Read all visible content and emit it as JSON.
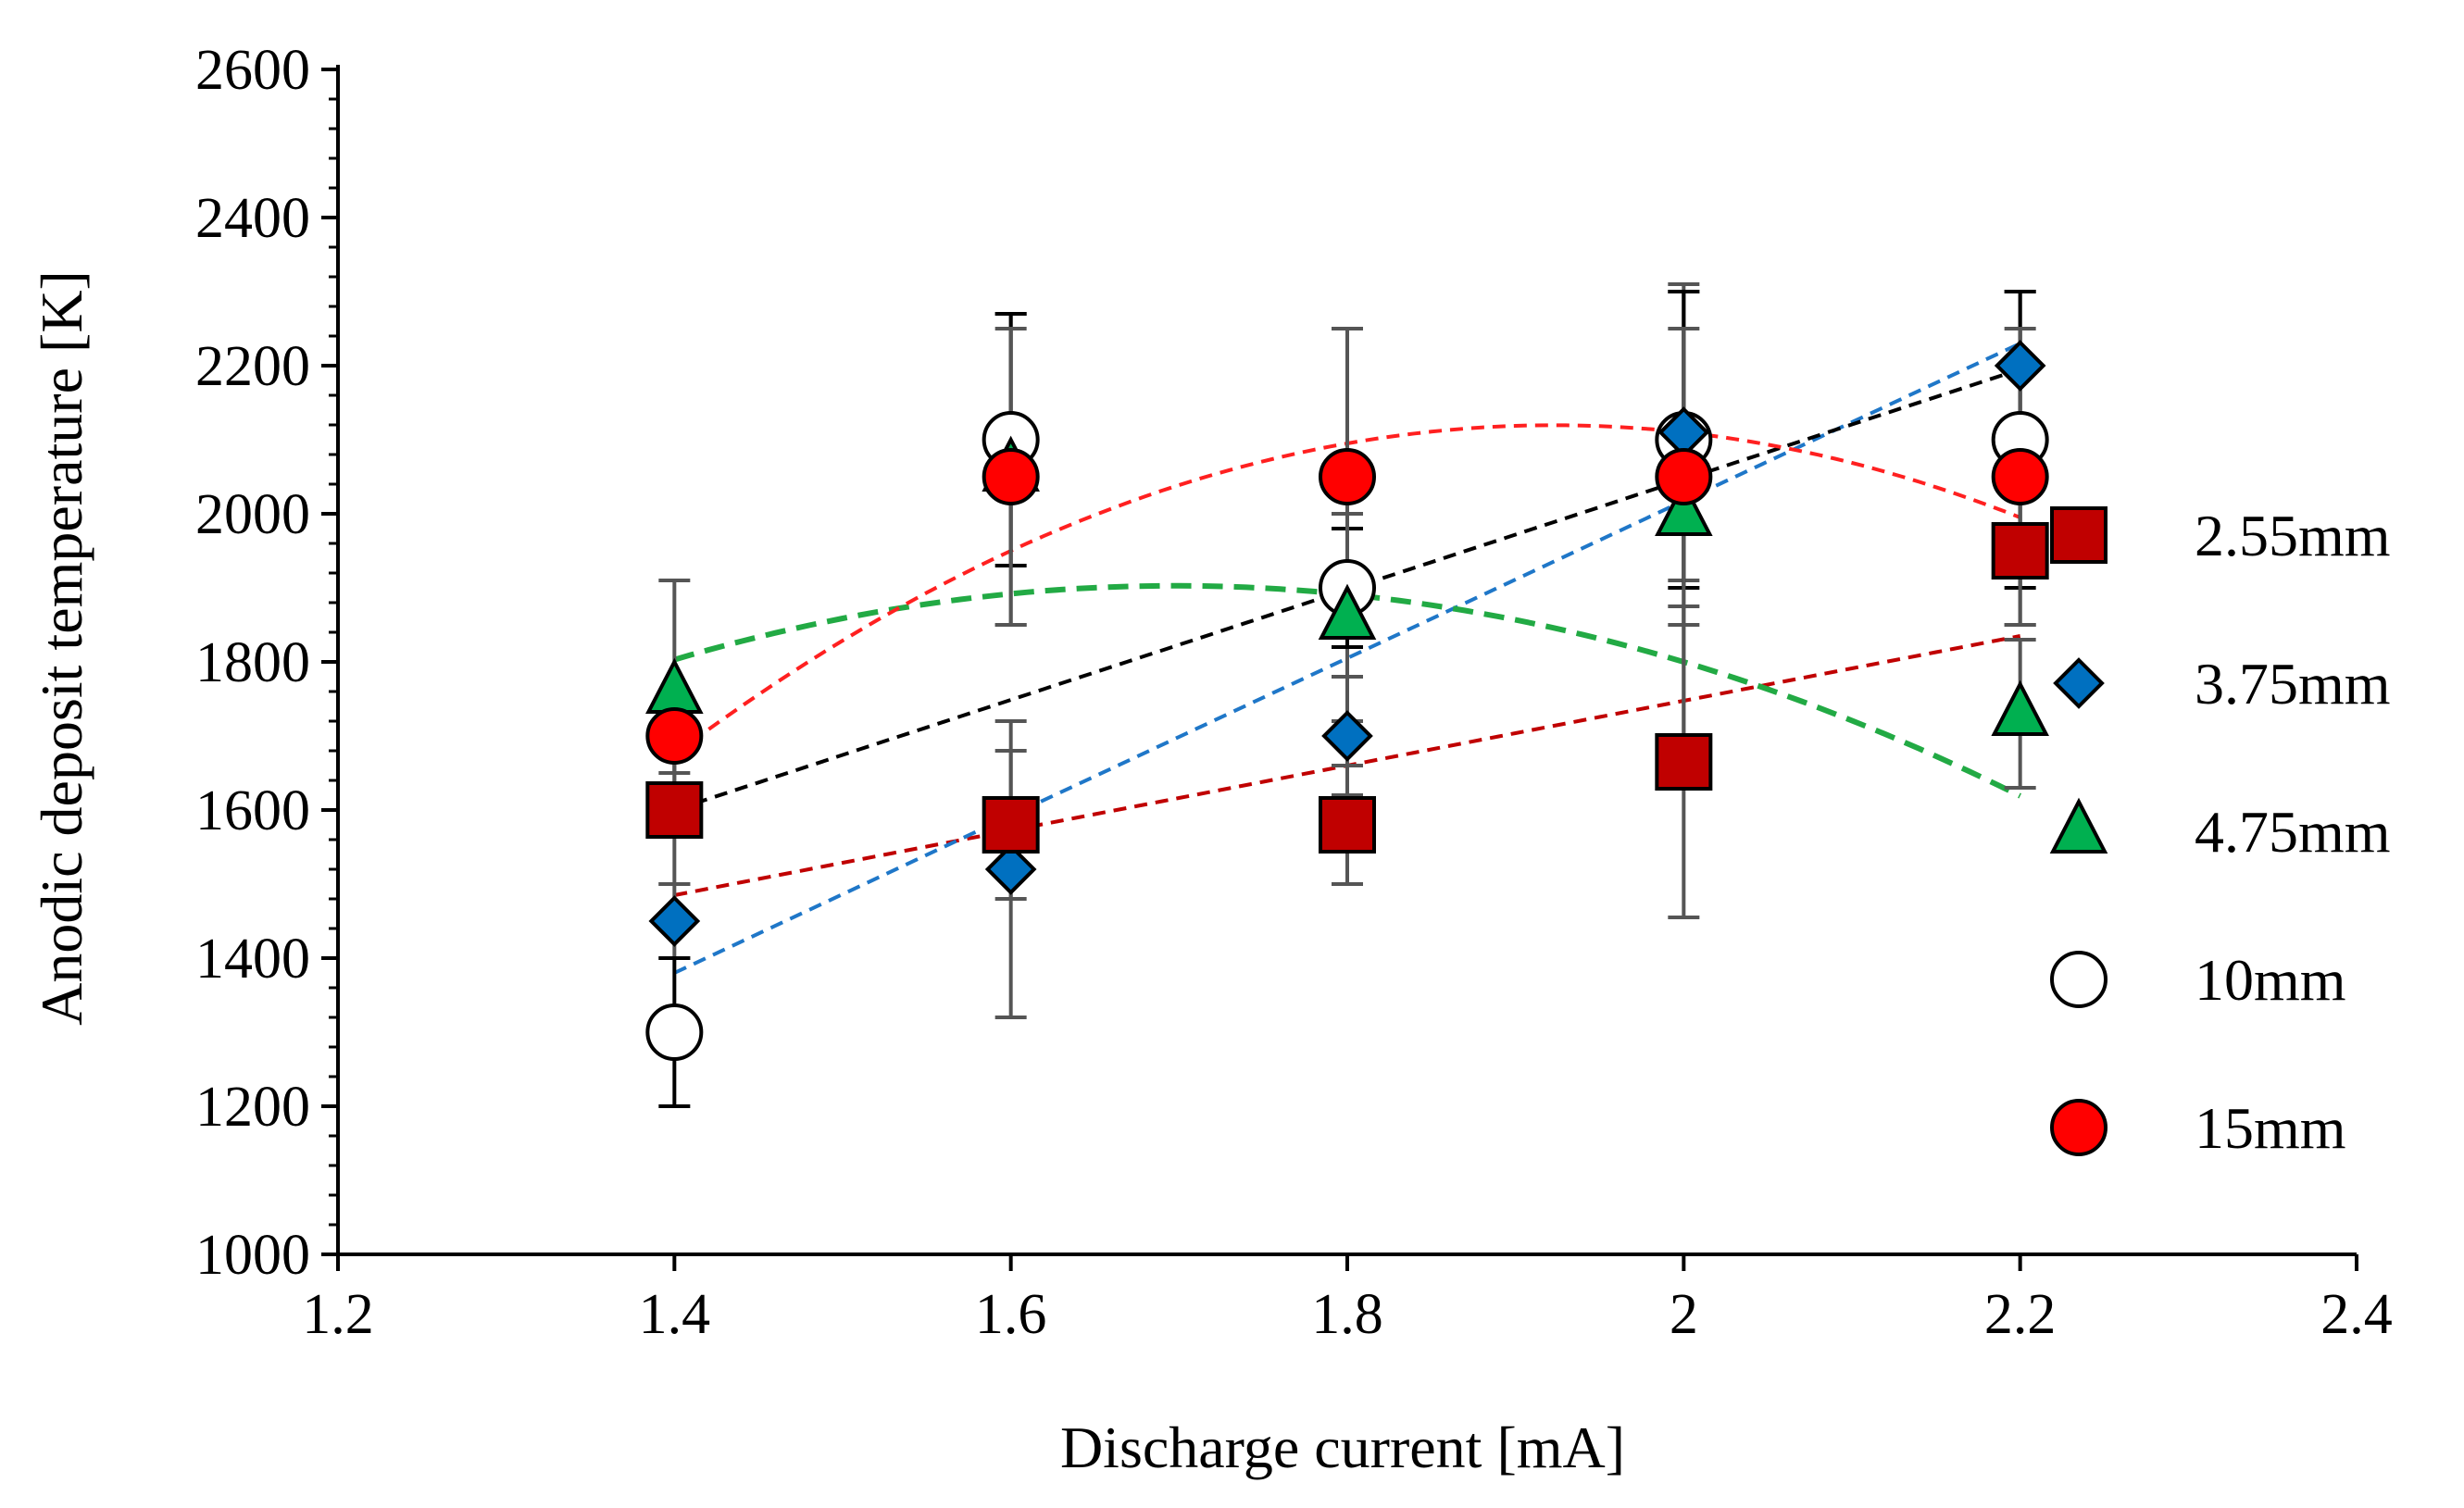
{
  "chart_data": {
    "type": "scatter",
    "title": "",
    "xlabel": "Discharge current [mA]",
    "ylabel": "Anodic deposit temperature  [K]",
    "xlim": [
      1.2,
      2.4
    ],
    "ylim": [
      1000,
      2600
    ],
    "xticks": [
      1.2,
      1.4,
      1.6,
      1.8,
      2.0,
      2.2,
      2.4
    ],
    "xtick_labels": [
      "1.2",
      "1.4",
      "1.6",
      "1.8",
      "2",
      "2.2",
      "2.4"
    ],
    "yticks": [
      1000,
      1200,
      1400,
      1600,
      1800,
      2000,
      2200,
      2400,
      2600
    ],
    "ytick_labels": [
      "1000",
      "1200",
      "1400",
      "1600",
      "1800",
      "2000",
      "2200",
      "2400",
      "2600"
    ],
    "grid": false,
    "legend_position": "right",
    "series": [
      {
        "name": "2.55mm",
        "marker": "square",
        "color": "#c00000",
        "x": [
          1.4,
          1.6,
          1.8,
          2.0,
          2.2
        ],
        "y": [
          1600,
          1580,
          1580,
          1665,
          1950
        ],
        "err": [
          100,
          100,
          80,
          210,
          100
        ],
        "trend": {
          "color": "#c00000",
          "coeffs": [
            0.8627,
            0.000621,
            0
          ]
        }
      },
      {
        "name": "3.75mm",
        "marker": "diamond",
        "color": "#0070c0",
        "x": [
          1.4,
          1.6,
          1.8,
          2.0,
          2.2
        ],
        "y": [
          1450,
          1520,
          1700,
          2110,
          2200
        ],
        "err": [
          50,
          200,
          80,
          200,
          100
        ],
        "trend": {
          "color": "#1f77c8",
          "coeffs": [
            1.0,
            0.0,
            0.0
          ],
          "line": [
            [
              1.4,
              1380
            ],
            [
              2.2,
              2230
            ]
          ]
        }
      },
      {
        "name": "4.75mm",
        "marker": "triangle",
        "color": "#00b050",
        "x": [
          1.4,
          1.6,
          1.8,
          2.0,
          2.2
        ],
        "y": [
          1760,
          2060,
          1860,
          2000,
          1730
        ],
        "err": [
          150,
          210,
          140,
          300,
          100
        ],
        "trend": {
          "color": "#22aa44",
          "coeffs": [
            -1340,
            3820,
            -1125
          ]
        }
      },
      {
        "name": "10mm",
        "marker": "circle-open",
        "color": "#ffffff",
        "x": [
          1.4,
          1.6,
          1.8,
          2.0,
          2.2
        ],
        "y": [
          1300,
          2100,
          1900,
          2100,
          2100
        ],
        "err": [
          100,
          170,
          80,
          200,
          200
        ],
        "trend": {
          "color": "#000000",
          "coeffs": [
            542.5,
            750,
            0
          ]
        }
      },
      {
        "name": "15mm",
        "marker": "circle",
        "color": "#ff0000",
        "x": [
          1.4,
          1.6,
          1.8,
          2.0,
          2.2
        ],
        "y": [
          1700,
          2050,
          2050,
          2050,
          2050
        ],
        "err": [
          50,
          200,
          200,
          200,
          200
        ],
        "trend": {
          "color": "#ff2020",
          "coeffs": [
            -3890,
            6250,
            -1625
          ]
        }
      }
    ]
  }
}
